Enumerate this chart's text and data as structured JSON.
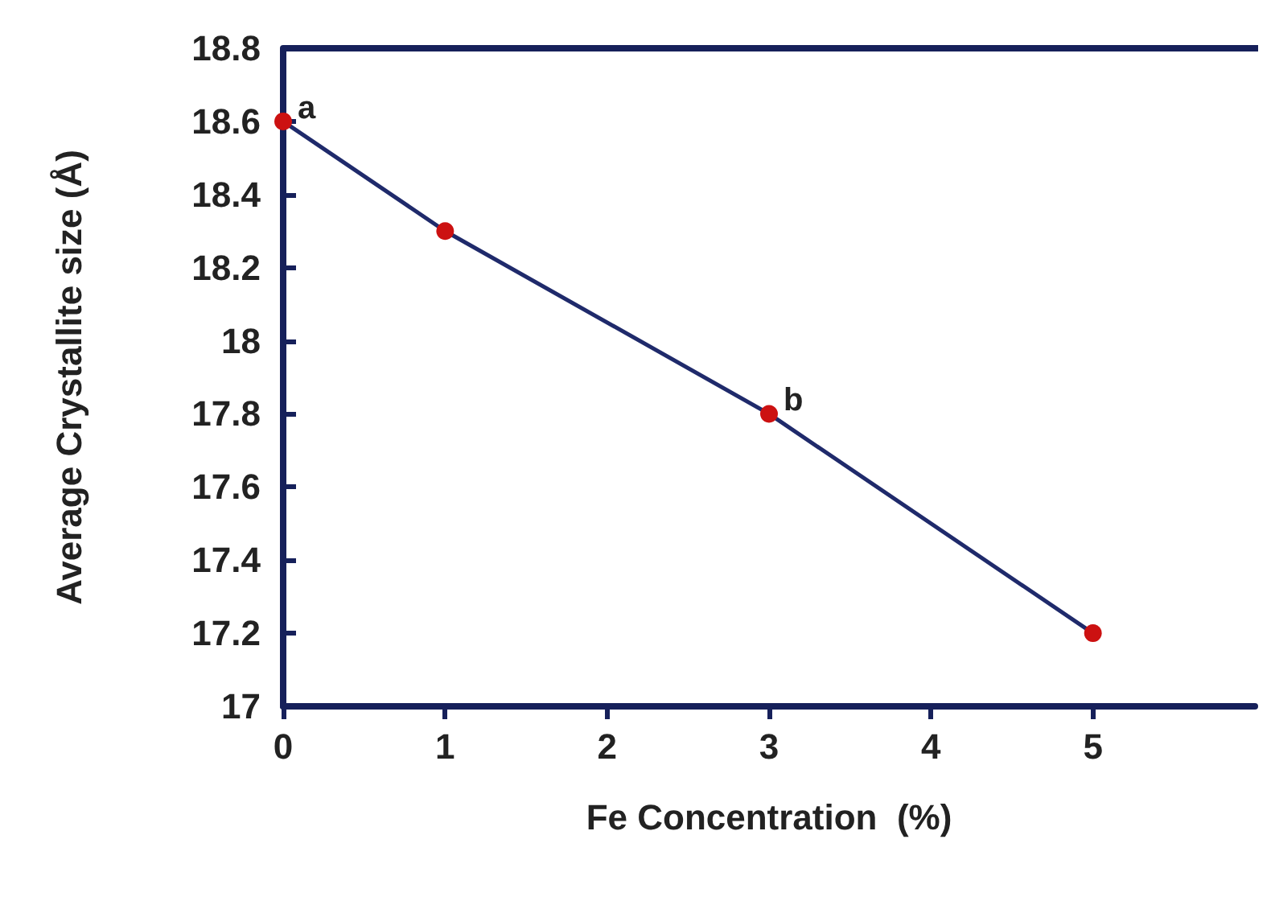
{
  "chart_data": {
    "type": "line",
    "xlabel": "Fe Concentration  (%)",
    "ylabel": "Average Crystallite size (Å)",
    "x": [
      0,
      1,
      3,
      5
    ],
    "series": [
      {
        "color": "#1f2a6b",
        "colors": [
          "#cc1111",
          "#cc1111",
          "#cc1111",
          "#cc1111"
        ],
        "values": [
          18.6,
          18.3,
          17.8,
          17.2
        ]
      }
    ],
    "marker": "circle",
    "xlim": [
      0,
      6
    ],
    "xticks": [
      0,
      1,
      2,
      3,
      4,
      5
    ],
    "ylim": [
      17,
      18.8
    ],
    "yticks": [
      17,
      17.2,
      17.4,
      17.6,
      17.8,
      18,
      18.2,
      18.4,
      18.6,
      18.8
    ],
    "grid": false,
    "annotations": [
      {
        "text": "a",
        "x": 0,
        "y": 18.6
      },
      {
        "text": "b",
        "x": 3,
        "y": 17.8
      }
    ]
  }
}
